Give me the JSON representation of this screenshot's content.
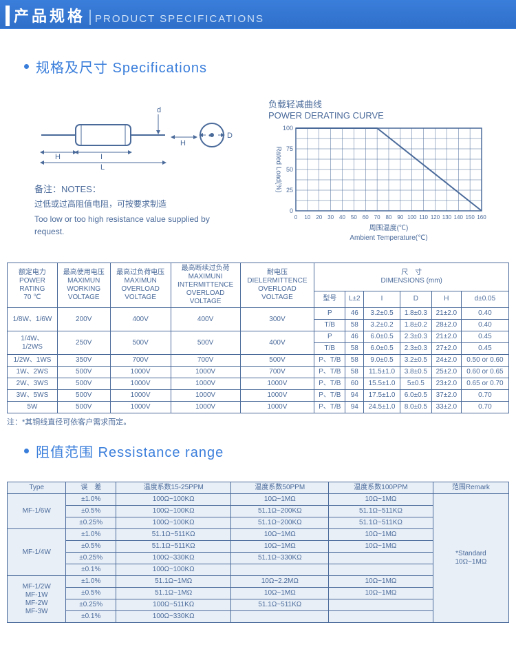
{
  "banner": {
    "cn": "产品规格",
    "en": "PRODUCT SPECIFICATIONS"
  },
  "section1": {
    "title": "规格及尺寸 Specifications"
  },
  "section2": {
    "title": "阻值范围 Ressistance range"
  },
  "diagram": {
    "labels": {
      "H": "H",
      "I": "I",
      "L": "L",
      "d": "d",
      "D": "D"
    },
    "notes_label": "备注：NOTES：",
    "notes_cn": "过低或过高阻值电阻，可按要求制造",
    "notes_en": "Too low or too high resistance value supplied by request."
  },
  "chart": {
    "title_cn": "负载轻减曲线",
    "title_en": "POWER DERATING CURVE",
    "y_label": "Rated Load(%)",
    "x_label_cn": "周围温度(℃)",
    "x_label_en": "Ambient Temperature(℃)",
    "x_ticks": [
      "0",
      "10",
      "20",
      "30",
      "40",
      "50",
      "60",
      "70",
      "80",
      "90",
      "100",
      "110",
      "120",
      "130",
      "140",
      "150",
      "160"
    ],
    "y_ticks": [
      "0",
      "25",
      "50",
      "75",
      "100"
    ],
    "grid_color": "#4a6a9a",
    "line_color": "#4a6a9a",
    "line_points": [
      [
        0,
        100
      ],
      [
        70,
        100
      ],
      [
        160,
        0
      ]
    ]
  },
  "table1": {
    "headers": {
      "c1": "额定电力\nPOWER\nRATING\n70 ℃",
      "c2": "最高使用电压\nMAXIMUN\nWORKING\nVOLTAGE",
      "c3": "最高过负荷电压\nMAXIMUN\nOVERLOAD\nVOLTAGE",
      "c4": "最高断续过负荷\nMAXIMUNI\nINTERMITTENCE\nOVERLOAD\nVOLTAGE",
      "c5": "耐电压\nDIELERMITTENCE\nOVERLOAD\nVOLTAGE",
      "dim_title_cn": "尺　寸",
      "dim_title_en": "DIMENSIONS  (mm)",
      "model": "型号",
      "L": "L±2",
      "I": "I",
      "D": "D",
      "H": "H",
      "d": "d±0.05"
    },
    "rows": [
      {
        "c1": "1/8W、1/6W",
        "c2": "200V",
        "c3": "400V",
        "c4": "400V",
        "c5": "300V",
        "sub": [
          {
            "m": "P",
            "L": "46",
            "I": "3.2±0.5",
            "D": "1.8±0.3",
            "H": "21±2.0",
            "d": "0.40"
          },
          {
            "m": "T/B",
            "L": "58",
            "I": "3.2±0.2",
            "D": "1.8±0.2",
            "H": "28±2.0",
            "d": "0.40"
          }
        ]
      },
      {
        "c1": "1/4W、\n1/2WS",
        "c2": "250V",
        "c3": "500V",
        "c4": "500V",
        "c5": "400V",
        "sub": [
          {
            "m": "P",
            "L": "46",
            "I": "6.0±0.5",
            "D": "2.3±0.3",
            "H": "21±2.0",
            "d": "0.45"
          },
          {
            "m": "T/B",
            "L": "58",
            "I": "6.0±0.5",
            "D": "2.3±0.3",
            "H": "27±2.0",
            "d": "0.45"
          }
        ]
      },
      {
        "c1": "1/2W、1WS",
        "c2": "350V",
        "c3": "700V",
        "c4": "700V",
        "c5": "500V",
        "sub": [
          {
            "m": "P、T/B",
            "L": "58",
            "I": "9.0±0.5",
            "D": "3.2±0.5",
            "H": "24±2.0",
            "d": "0.50 or 0.60"
          }
        ]
      },
      {
        "c1": "1W、2WS",
        "c2": "500V",
        "c3": "1000V",
        "c4": "1000V",
        "c5": "700V",
        "sub": [
          {
            "m": "P、T/B",
            "L": "58",
            "I": "11.5±1.0",
            "D": "3.8±0.5",
            "H": "25±2.0",
            "d": "0.60 or 0.65"
          }
        ]
      },
      {
        "c1": "2W、3WS",
        "c2": "500V",
        "c3": "1000V",
        "c4": "1000V",
        "c5": "1000V",
        "sub": [
          {
            "m": "P、T/B",
            "L": "60",
            "I": "15.5±1.0",
            "D": "5±0.5",
            "H": "23±2.0",
            "d": "0.65 or 0.70"
          }
        ]
      },
      {
        "c1": "3W、5WS",
        "c2": "500V",
        "c3": "1000V",
        "c4": "1000V",
        "c5": "1000V",
        "sub": [
          {
            "m": "P、T/B",
            "L": "94",
            "I": "17.5±1.0",
            "D": "6.0±0.5",
            "H": "37±2.0",
            "d": "0.70"
          }
        ]
      },
      {
        "c1": "5W",
        "c2": "500V",
        "c3": "1000V",
        "c4": "1000V",
        "c5": "1000V",
        "sub": [
          {
            "m": "P、T/B",
            "L": "94",
            "I": "24.5±1.0",
            "D": "8.0±0.5",
            "H": "33±2.0",
            "d": "0.70"
          }
        ]
      }
    ],
    "note": "注：*其铜线直径可依客户需求而定。"
  },
  "table2": {
    "headers": [
      "Type",
      "误　差",
      "温度系数15-25PPM",
      "温度系数50PPM",
      "温度系数100PPM",
      "范围Remark"
    ],
    "groups": [
      {
        "type": "MF-1/6W",
        "rows": [
          {
            "tol": "±1.0%",
            "c1": "100Ω~100KΩ",
            "c2": "10Ω~1MΩ",
            "c3": "10Ω~1MΩ"
          },
          {
            "tol": "±0.5%",
            "c1": "100Ω~100KΩ",
            "c2": "51.1Ω~200KΩ",
            "c3": "51.1Ω~511KΩ"
          },
          {
            "tol": "±0.25%",
            "c1": "100Ω~100KΩ",
            "c2": "51.1Ω~200KΩ",
            "c3": "51.1Ω~511KΩ"
          }
        ]
      },
      {
        "type": "MF-1/4W",
        "rows": [
          {
            "tol": "±1.0%",
            "c1": "51.1Ω~511KΩ",
            "c2": "10Ω~1MΩ",
            "c3": "10Ω~1MΩ"
          },
          {
            "tol": "±0.5%",
            "c1": "51.1Ω~511KΩ",
            "c2": "10Ω~1MΩ",
            "c3": "10Ω~1MΩ"
          },
          {
            "tol": "±0.25%",
            "c1": "100Ω~330KΩ",
            "c2": "51.1Ω~330KΩ",
            "c3": ""
          },
          {
            "tol": "±0.1%",
            "c1": "100Ω~100KΩ",
            "c2": "",
            "c3": ""
          }
        ]
      },
      {
        "type": "MF-1/2W\nMF-1W\nMF-2W\nMF-3W",
        "rows": [
          {
            "tol": "±1.0%",
            "c1": "51.1Ω~1MΩ",
            "c2": "10Ω~2.2MΩ",
            "c3": "10Ω~1MΩ"
          },
          {
            "tol": "±0.5%",
            "c1": "51.1Ω~1MΩ",
            "c2": "10Ω~1MΩ",
            "c3": "10Ω~1MΩ"
          },
          {
            "tol": "±0.25%",
            "c1": "100Ω~511KΩ",
            "c2": "51.1Ω~511KΩ",
            "c3": ""
          },
          {
            "tol": "±0.1%",
            "c1": "100Ω~330KΩ",
            "c2": "",
            "c3": ""
          }
        ]
      }
    ],
    "remark": "*Standard\n10Ω~1MΩ"
  }
}
